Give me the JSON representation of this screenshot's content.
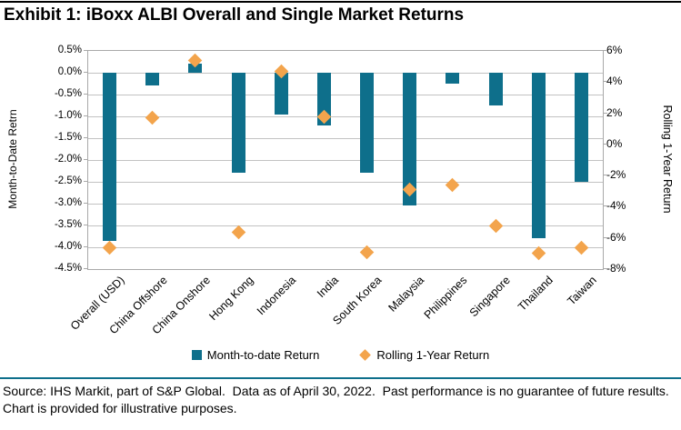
{
  "page": {
    "title": "Exhibit 1: iBoxx ALBI Overall and Single Market Returns"
  },
  "chart_data": {
    "type": "bar",
    "title": "Exhibit 1: iBoxx ALBI Overall and Single Market Returns",
    "categories": [
      "Overall (USD)",
      "China Offshore",
      "China Onshore",
      "Hong Kong",
      "Indonesia",
      "India",
      "South Korea",
      "Malaysia",
      "Philippines",
      "Singapore",
      "Thailand",
      "Taiwan"
    ],
    "series": [
      {
        "name": "Month-to-date Return",
        "marker": "bar",
        "axis": "left",
        "color": "#0e6f8b",
        "values": [
          -3.85,
          -0.3,
          0.2,
          -2.3,
          -0.95,
          -1.2,
          -2.3,
          -3.05,
          -0.25,
          -0.75,
          -3.8,
          -2.5
        ]
      },
      {
        "name": "Rolling 1-Year Return",
        "marker": "diamond",
        "axis": "right",
        "color": "#f3a44c",
        "values": [
          -6.6,
          1.7,
          5.4,
          -5.65,
          4.7,
          1.8,
          -6.9,
          -2.9,
          -2.6,
          -5.2,
          -7.0,
          -6.6
        ]
      }
    ],
    "left_axis": {
      "title": "Month-to-Date Retrn",
      "max": 0.5,
      "min": -4.5,
      "tick_step": 0.5,
      "tick_labels": [
        "0.5%",
        "0.0%",
        "-0.5%",
        "-1.0%",
        "-1.5%",
        "-2.0%",
        "-2.5%",
        "-3.0%",
        "-3.5%",
        "-4.0%",
        "-4.5%"
      ]
    },
    "right_axis": {
      "title": "Rolling 1-Year Return",
      "max": 6,
      "min": -8,
      "tick_step": 2,
      "tick_labels": [
        "6%",
        "4%",
        "2%",
        "0%",
        "-2%",
        "-4%",
        "-6%",
        "-8%"
      ]
    },
    "grid": true,
    "legend_position": "bottom"
  },
  "legend": {
    "mtd_label": "Month-to-date Return",
    "rolling_label": "Rolling 1-Year Return"
  },
  "footer": {
    "text": "Source: IHS Markit, part of S&P Global.  Data as of April 30, 2022.  Past performance is no guarantee of future results.  Chart is provided for illustrative purposes."
  }
}
